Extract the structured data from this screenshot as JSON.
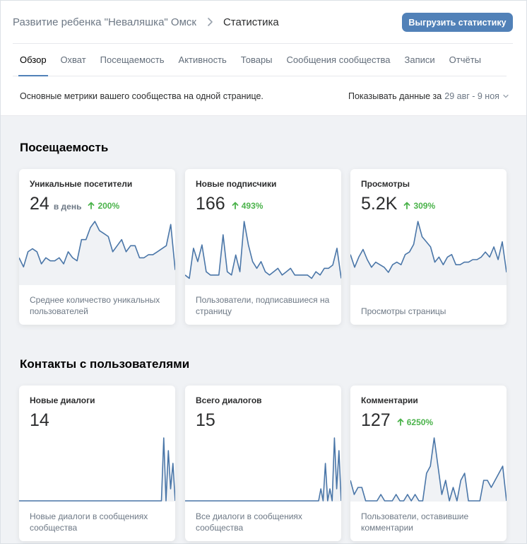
{
  "breadcrumb": {
    "community": "Развитие ребенка \"Неваляшка\" Омск",
    "current": "Статистика"
  },
  "export_button": "Выгрузить статистику",
  "tabs": [
    {
      "label": "Обзор",
      "active": true
    },
    {
      "label": "Охват",
      "active": false
    },
    {
      "label": "Посещаемость",
      "active": false
    },
    {
      "label": "Активность",
      "active": false
    },
    {
      "label": "Товары",
      "active": false
    },
    {
      "label": "Сообщения сообщества",
      "active": false
    },
    {
      "label": "Записи",
      "active": false
    },
    {
      "label": "Отчёты",
      "active": false
    }
  ],
  "description": "Основные метрики вашего сообщества на одной странице.",
  "period": {
    "label": "Показывать данные за",
    "value": "29 авг - 9 ноя"
  },
  "colors": {
    "accent": "#5181b8",
    "growth": "#4bb34b",
    "line": "#4a76a8",
    "area": "#f0f2f5"
  },
  "sections": [
    {
      "title": "Посещаемость",
      "cards": [
        {
          "title": "Уникальные посетители",
          "value": "24",
          "unit": "в день",
          "growth": "200%",
          "caption": "Среднее количество уникальных пользователей",
          "series": [
            9,
            6,
            11,
            12,
            11,
            7,
            9,
            8,
            8,
            9,
            7,
            11,
            9,
            8,
            15,
            15,
            19,
            21,
            18,
            17,
            16,
            11,
            13,
            15,
            11,
            13,
            13,
            9,
            9,
            10,
            10,
            11,
            12,
            13,
            20,
            5
          ]
        },
        {
          "title": "Новые подписчики",
          "value": "166",
          "unit": "",
          "growth": "493%",
          "caption": "Пользователи, подписавшиеся на страницу",
          "series": [
            3,
            2,
            11,
            7,
            12,
            4,
            3,
            3,
            3,
            15,
            4,
            3,
            9,
            4,
            19,
            12,
            7,
            5,
            7,
            4,
            3,
            4,
            5,
            3,
            4,
            5,
            3,
            3,
            3,
            3,
            2,
            4,
            3,
            5,
            5,
            6,
            11,
            2
          ]
        },
        {
          "title": "Просмотры",
          "value": "5.2K",
          "unit": "",
          "growth": "309%",
          "caption": "Просмотры страницы",
          "series": [
            12,
            7,
            11,
            14,
            10,
            7,
            9,
            8,
            7,
            5,
            8,
            9,
            8,
            12,
            13,
            16,
            25,
            19,
            17,
            15,
            9,
            11,
            8,
            11,
            12,
            8,
            8,
            9,
            9,
            10,
            10,
            11,
            13,
            11,
            15,
            10,
            17,
            5
          ]
        }
      ]
    },
    {
      "title": "Контакты с пользователями",
      "cards": [
        {
          "title": "Новые диалоги",
          "value": "14",
          "unit": "",
          "growth": "",
          "caption": "Новые диалоги в сообщениях сообщества",
          "series": [
            0,
            0,
            0,
            0,
            0,
            0,
            0,
            0,
            0,
            0,
            0,
            0,
            0,
            0,
            0,
            0,
            0,
            0,
            0,
            0,
            0,
            0,
            0,
            0,
            0,
            0,
            0,
            0,
            0,
            0,
            0,
            0,
            0,
            0,
            0,
            0,
            0,
            0,
            0,
            0,
            0,
            0,
            0,
            0,
            0,
            0,
            0,
            0,
            0,
            0,
            0,
            0,
            0,
            0,
            0,
            0,
            0,
            0,
            0,
            0,
            0,
            0,
            0,
            5,
            0,
            4,
            1,
            3,
            0
          ]
        },
        {
          "title": "Всего диалогов",
          "value": "15",
          "unit": "",
          "growth": "",
          "caption": "Все диалоги в сообщениях сообщества",
          "series": [
            0,
            0,
            0,
            0,
            0,
            0,
            0,
            0,
            0,
            0,
            0,
            0,
            0,
            0,
            0,
            0,
            0,
            0,
            0,
            0,
            0,
            0,
            0,
            0,
            0,
            0,
            0,
            0,
            0,
            0,
            0,
            0,
            0,
            0,
            0,
            0,
            0,
            0,
            0,
            0,
            0,
            0,
            0,
            0,
            0,
            0,
            0,
            0,
            0,
            0,
            0,
            0,
            0,
            0,
            0,
            0,
            0,
            0,
            0,
            0,
            1,
            0,
            3,
            0,
            1,
            0,
            5,
            1,
            4,
            0
          ]
        },
        {
          "title": "Комментарии",
          "value": "127",
          "unit": "",
          "growth": "6250%",
          "caption": "Пользователи, оставившие комментарии",
          "series": [
            3,
            1,
            2,
            2,
            0,
            0,
            0,
            0,
            1,
            0,
            0,
            0,
            1,
            0,
            0,
            1,
            0,
            1,
            0,
            0,
            4,
            5,
            9,
            5,
            1,
            3,
            0,
            2,
            0,
            3,
            4,
            0,
            0,
            0,
            0,
            3,
            3,
            2,
            3,
            4,
            5,
            0
          ]
        }
      ]
    }
  ]
}
